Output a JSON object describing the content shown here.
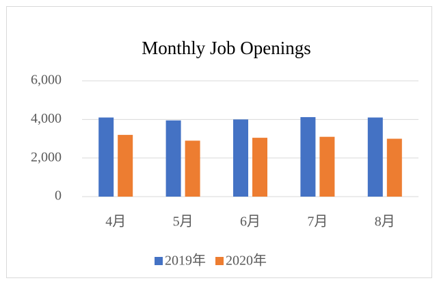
{
  "chart_data": {
    "type": "bar",
    "title": "Monthly Job Openings",
    "categories": [
      "4月",
      "5月",
      "6月",
      "7月",
      "8月"
    ],
    "series": [
      {
        "name": "2019年",
        "color": "#4472c4",
        "values": [
          4100,
          3950,
          4000,
          4120,
          4100
        ]
      },
      {
        "name": "2020年",
        "color": "#ed7d31",
        "values": [
          3200,
          2900,
          3050,
          3100,
          3000
        ]
      }
    ],
    "ylim": [
      0,
      6000
    ],
    "yticks": [
      0,
      {
        "value": 2000,
        "label": "2,000"
      },
      {
        "value": 4000,
        "label": "4,000"
      },
      {
        "value": 6000,
        "label": "6,000"
      }
    ],
    "grid": true,
    "legend": "bottom"
  }
}
